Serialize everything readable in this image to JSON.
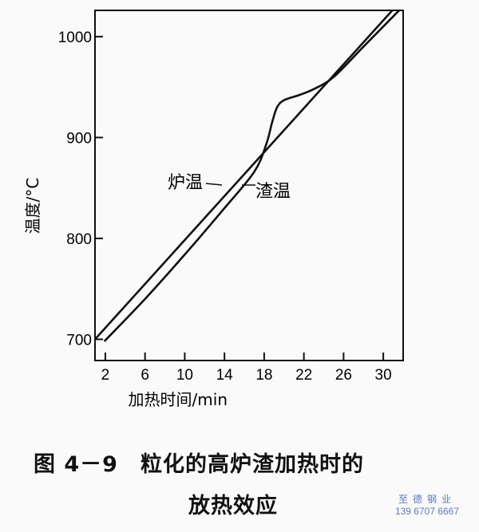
{
  "chart_data": {
    "type": "line",
    "title": "",
    "xlabel": "加热时间/min",
    "ylabel": "温度/°C",
    "xlim": [
      0.96,
      32
    ],
    "ylim": [
      679,
      1026
    ],
    "xticks": [
      2,
      6,
      10,
      14,
      18,
      22,
      26,
      30
    ],
    "yticks": [
      700,
      800,
      900,
      1000
    ],
    "grid": false,
    "series": [
      {
        "name": "炉温",
        "x": [
          0.96,
          31
        ],
        "y": [
          700,
          1027
        ]
      },
      {
        "name": "渣温",
        "x": [
          1.9,
          6,
          10,
          14,
          17,
          18.2,
          18.8,
          19.3,
          20,
          21.5,
          23,
          25,
          28,
          31.6
        ],
        "y": [
          698,
          740,
          784,
          830,
          866,
          893,
          915,
          930,
          937,
          942,
          948,
          960,
          990,
          1026
        ]
      }
    ],
    "annotations": [
      "炉温",
      "渣温"
    ]
  },
  "caption": {
    "line1": "图 4－9　粒化的高炉渣加热时的",
    "line2": "放热效应"
  },
  "watermark": {
    "name": "至德钢业",
    "phone": "139 6707 6667"
  }
}
